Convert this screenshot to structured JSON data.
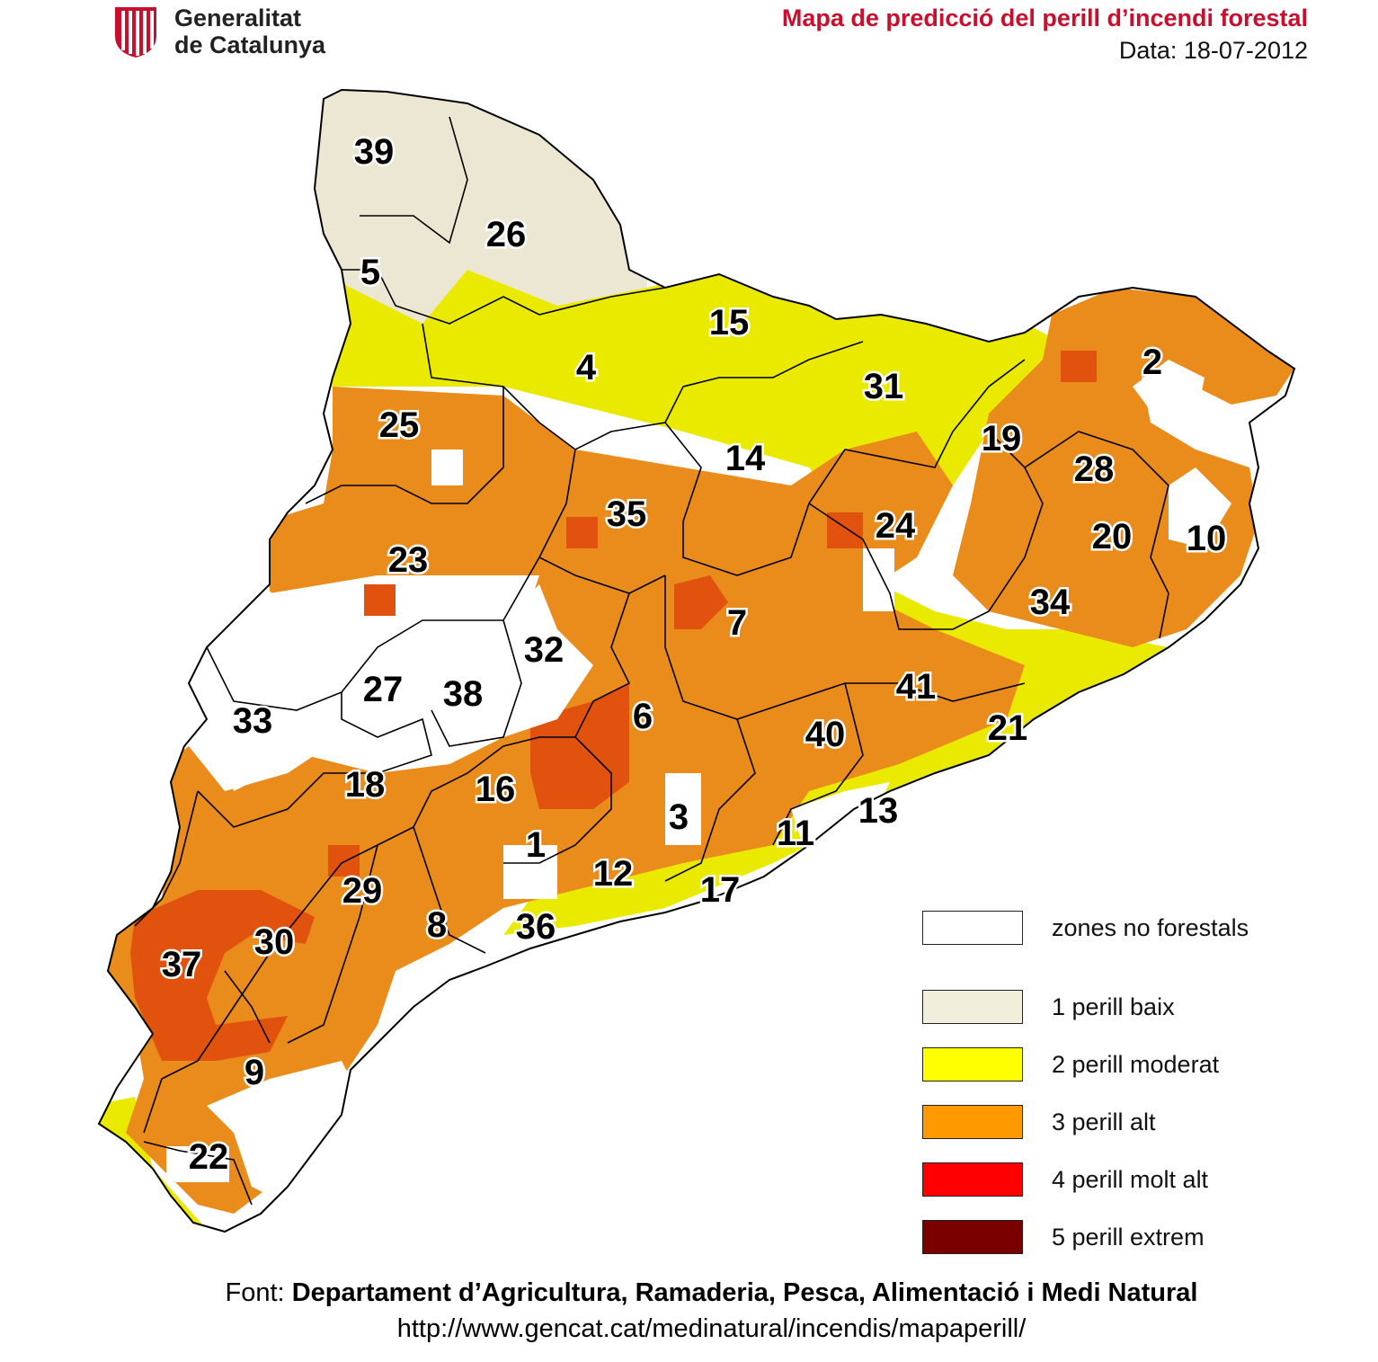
{
  "header": {
    "org_line1": "Generalitat",
    "org_line2": "de Catalunya",
    "title": "Mapa de predicció del perill d’incendi forestal",
    "date": "Data: 18-07-2012"
  },
  "zones": [
    "1",
    "2",
    "3",
    "4",
    "5",
    "6",
    "7",
    "8",
    "9",
    "10",
    "11",
    "12",
    "13",
    "14",
    "15",
    "16",
    "17",
    "18",
    "19",
    "20",
    "21",
    "22",
    "23",
    "24",
    "25",
    "26",
    "27",
    "28",
    "29",
    "30",
    "31",
    "32",
    "33",
    "34",
    "35",
    "36",
    "37",
    "38",
    "39",
    "40",
    "41"
  ],
  "legend": [
    {
      "label": "zones no forestals",
      "color": "#ffffff"
    },
    {
      "label": "1  perill baix",
      "color": "#f2eedc"
    },
    {
      "label": "2  perill moderat",
      "color": "#ffff00"
    },
    {
      "label": "3  perill alt",
      "color": "#ff9900"
    },
    {
      "label": "4  perill molt alt",
      "color": "#ff0000"
    },
    {
      "label": "5  perill extrem",
      "color": "#7a0000"
    }
  ],
  "map_colors": {
    "baix": "#ece7d2",
    "moderat": "#eaea00",
    "alt": "#ea8c1c",
    "molt_alt": "#e0520e",
    "outline": "#000000"
  },
  "footer": {
    "prefix": "Font: ",
    "source": "Departament d’Agricultura, Ramaderia, Pesca, Alimentació i Medi Natural",
    "url": "http://www.gencat.cat/medinatural/incendis/mapaperill/"
  }
}
